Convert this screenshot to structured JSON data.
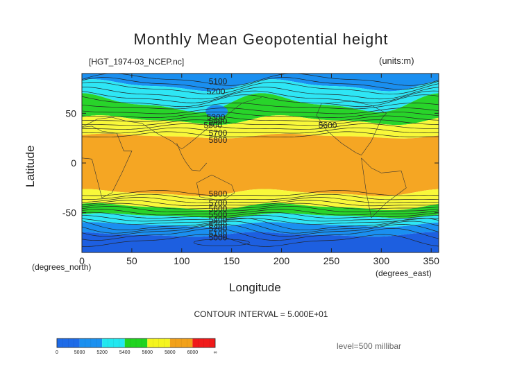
{
  "chart_data": {
    "type": "heatmap",
    "title": "Monthly Mean Geopotential height",
    "subtitle_left": "[HGT_1974-03_NCEP.nc]",
    "subtitle_right": "(units:m)",
    "xlabel": "Longitude",
    "xlabel_units": "(degrees_east)",
    "ylabel": "Latitude",
    "ylabel_units": "(degrees_north)",
    "xlim": [
      0,
      357.5
    ],
    "ylim": [
      -90,
      90
    ],
    "x_ticks": [
      0,
      50,
      100,
      150,
      200,
      250,
      300,
      350
    ],
    "y_ticks": [
      50,
      0,
      -50
    ],
    "contour_interval_text": "CONTOUR INTERVAL = 5.000E+01",
    "level_text": "level=500 millibar",
    "contour_labels": [
      {
        "text": "5100",
        "lon": 127,
        "lat": 82
      },
      {
        "text": "5200",
        "lon": 125,
        "lat": 72
      },
      {
        "text": "5300",
        "lon": 125,
        "lat": 46
      },
      {
        "text": "5400",
        "lon": 127,
        "lat": 42
      },
      {
        "text": "5500",
        "lon": 122,
        "lat": 38
      },
      {
        "text": "5600",
        "lon": 237,
        "lat": 38
      },
      {
        "text": "5700",
        "lon": 127,
        "lat": 30
      },
      {
        "text": "5800",
        "lon": 127,
        "lat": 23
      },
      {
        "text": "5800",
        "lon": 127,
        "lat": -31
      },
      {
        "text": "5700",
        "lon": 127,
        "lat": -40
      },
      {
        "text": "5600",
        "lon": 127,
        "lat": -46
      },
      {
        "text": "5500",
        "lon": 127,
        "lat": -52
      },
      {
        "text": "5400",
        "lon": 127,
        "lat": -57
      },
      {
        "text": "5300",
        "lon": 127,
        "lat": -62
      },
      {
        "text": "5200",
        "lon": 127,
        "lat": -66
      },
      {
        "text": "5100",
        "lon": 127,
        "lat": -71
      },
      {
        "text": "5000",
        "lon": 127,
        "lat": -75
      }
    ],
    "colorbar": {
      "bins": [
        {
          "lo": "0",
          "hi": "5000",
          "color": "#1e6be8"
        },
        {
          "lo": "5000",
          "hi": "5200",
          "color": "#1a90f0"
        },
        {
          "lo": "5200",
          "hi": "5400",
          "color": "#22e8f0"
        },
        {
          "lo": "5400",
          "hi": "5600",
          "color": "#1fd41f"
        },
        {
          "lo": "5600",
          "hi": "5800",
          "color": "#f5f51e"
        },
        {
          "lo": "5800",
          "hi": "6000",
          "color": "#f2a11a"
        },
        {
          "lo": "6000",
          "hi": "∞",
          "color": "#f01a1a"
        }
      ],
      "labels": [
        "0",
        "5000",
        "5200",
        "5400",
        "5600",
        "5800",
        "6000",
        "∞"
      ]
    }
  },
  "colors": {
    "ocean_orange": "#f5a623",
    "yellow": "#f8f83a",
    "green": "#28d42a",
    "cyan": "#2ee6f5",
    "blue": "#1a8ff0",
    "deep_blue": "#1d5fe0",
    "contour": "#222222"
  }
}
